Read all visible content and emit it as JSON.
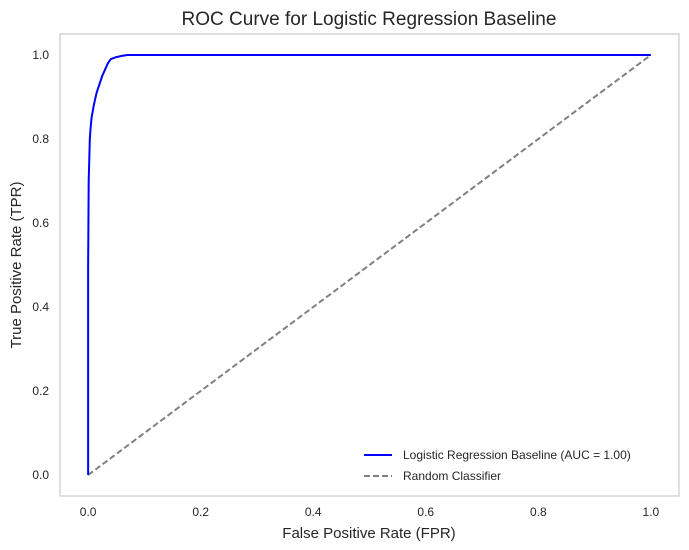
{
  "chart_data": {
    "type": "line",
    "title": "ROC Curve for Logistic Regression Baseline",
    "xlabel": "False Positive Rate (FPR)",
    "ylabel": "True Positive Rate (TPR)",
    "xlim": [
      -0.05,
      1.05
    ],
    "ylim": [
      -0.05,
      1.05
    ],
    "xticks": [
      "0.0",
      "0.2",
      "0.4",
      "0.6",
      "0.8",
      "1.0"
    ],
    "yticks": [
      "0.0",
      "0.2",
      "0.4",
      "0.6",
      "0.8",
      "1.0"
    ],
    "grid": false,
    "legend_position": "lower-right",
    "series": [
      {
        "name": "Logistic Regression Baseline (AUC = 1.00)",
        "color": "#0000ff",
        "style": "solid",
        "x": [
          0.0,
          0.0,
          0.001,
          0.002,
          0.003,
          0.004,
          0.006,
          0.01,
          0.015,
          0.02,
          0.025,
          0.03,
          0.035,
          0.04,
          0.05,
          0.06,
          0.07,
          0.1,
          0.3,
          0.6,
          1.0
        ],
        "y": [
          0.0,
          0.5,
          0.7,
          0.75,
          0.8,
          0.82,
          0.85,
          0.88,
          0.91,
          0.93,
          0.95,
          0.965,
          0.98,
          0.99,
          0.995,
          0.998,
          1.0,
          1.0,
          1.0,
          1.0,
          1.0
        ]
      },
      {
        "name": "Random Classifier",
        "color": "#808080",
        "style": "dashed",
        "x": [
          0.0,
          1.0
        ],
        "y": [
          0.0,
          1.0
        ]
      }
    ]
  }
}
